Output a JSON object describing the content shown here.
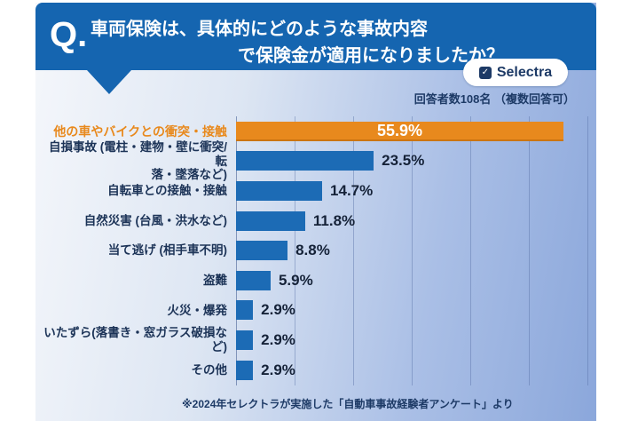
{
  "header": {
    "q_label": "Q.",
    "title_line1": "車両保険は、具体的にどのような事故内容",
    "title_line2": "で保険金が適用になりましたか？",
    "brand": "Selectra",
    "brand_glyph": "✓",
    "header_color": "#1565b0"
  },
  "meta": {
    "respondents_note": "回答者数108名 （複数回答可）"
  },
  "chart_data": {
    "type": "bar",
    "orientation": "horizontal",
    "title": "車両保険は、具体的にどのような事故内容で保険金が適用になりましたか？",
    "categories": [
      "他の車やバイクとの衝突・接触",
      "自損事故 (電柱・建物・壁に衝突/転\n落・墜落など)",
      "自転車との接触・接触",
      "自然災害 (台風・洪水など)",
      "当て逃げ (相手車不明)",
      "盗難",
      "火災・爆発",
      "いたずら(落書き・窓ガラス破損など)",
      "その他"
    ],
    "values": [
      55.9,
      23.5,
      14.7,
      11.8,
      8.8,
      5.9,
      2.9,
      2.9,
      2.9
    ],
    "value_labels": [
      "55.9%",
      "23.5%",
      "14.7%",
      "11.8%",
      "8.8%",
      "5.9%",
      "2.9%",
      "2.9%",
      "2.9%"
    ],
    "highlight_index": 0,
    "colors": {
      "highlight": "#e8891d",
      "default": "#1c6bb5"
    },
    "xlim": [
      0,
      61.5
    ],
    "gridline_interval": 10,
    "grid": "vertical",
    "legend": "none"
  },
  "footer": {
    "source_note": "※2024年セレクトラが実施した「自動車事故経験者アンケート」より"
  }
}
